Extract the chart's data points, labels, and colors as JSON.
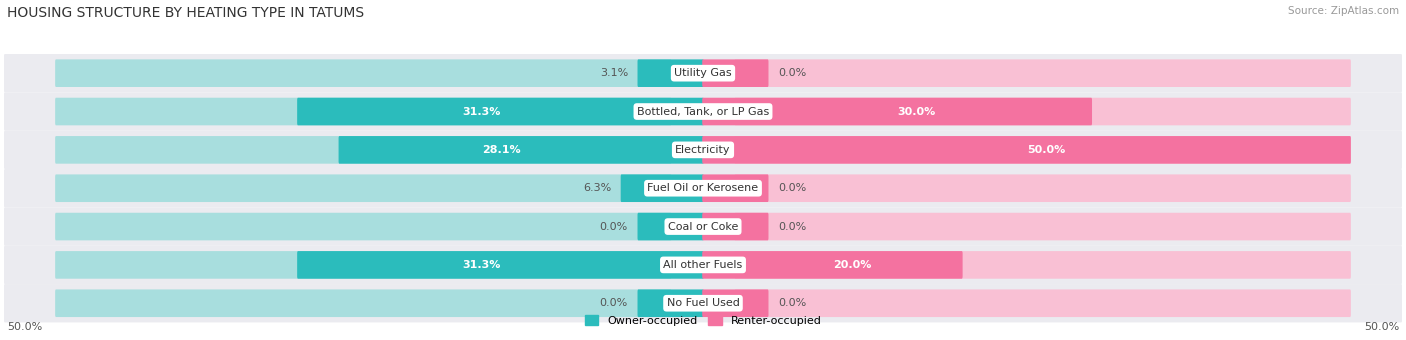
{
  "title": "HOUSING STRUCTURE BY HEATING TYPE IN TATUMS",
  "source": "Source: ZipAtlas.com",
  "categories": [
    "Utility Gas",
    "Bottled, Tank, or LP Gas",
    "Electricity",
    "Fuel Oil or Kerosene",
    "Coal or Coke",
    "All other Fuels",
    "No Fuel Used"
  ],
  "owner_values": [
    3.1,
    31.3,
    28.1,
    6.3,
    0.0,
    31.3,
    0.0
  ],
  "renter_values": [
    0.0,
    30.0,
    50.0,
    0.0,
    0.0,
    20.0,
    0.0
  ],
  "owner_color": "#2bbcbc",
  "renter_color": "#f472a0",
  "owner_color_light": "#a8dede",
  "renter_color_light": "#f9c0d4",
  "row_bg_color": "#ebebf0",
  "row_bg_color2": "#f5f5f8",
  "max_value": 50.0,
  "min_bar_size": 5.0,
  "title_fontsize": 10,
  "label_fontsize": 8,
  "cat_fontsize": 8,
  "tick_fontsize": 8,
  "figsize": [
    14.06,
    3.4
  ],
  "dpi": 100
}
